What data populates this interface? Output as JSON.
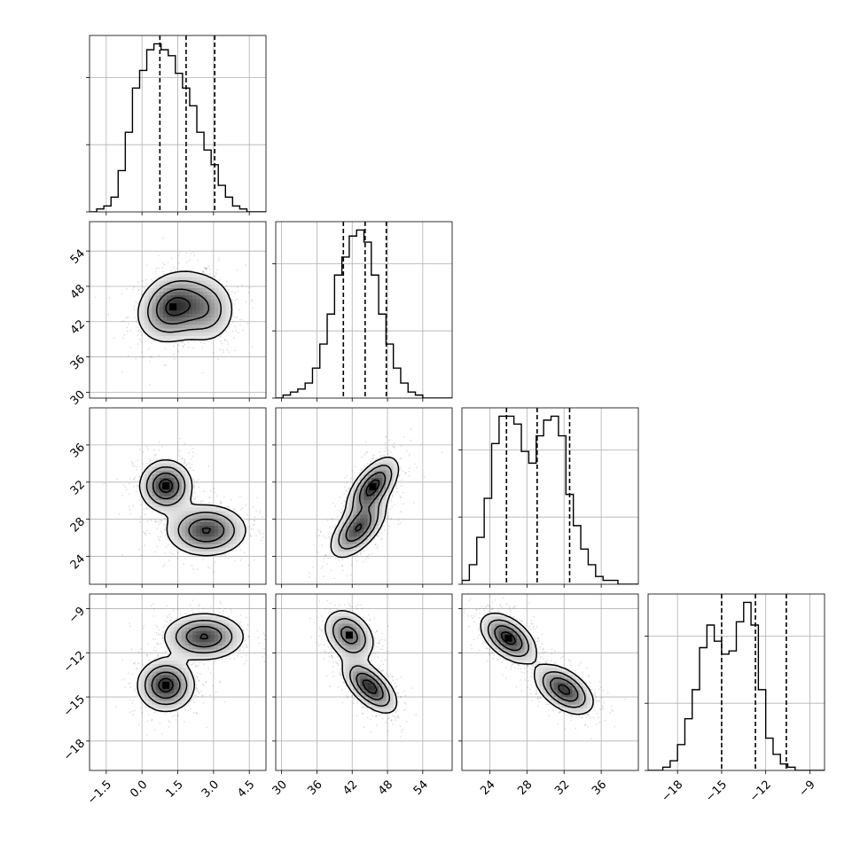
{
  "chart_data": {
    "type": "corner",
    "grid": true,
    "parameters": [
      {
        "index": 0,
        "axis_ticks": [
          "−1.5",
          "0.0",
          "1.5",
          "3.0",
          "4.5"
        ],
        "tick_values": [
          -1.5,
          0.0,
          1.5,
          3.0,
          4.5
        ],
        "range": [
          -2.2,
          5.2
        ],
        "quantiles": [
          0.75,
          1.85,
          3.05
        ]
      },
      {
        "index": 1,
        "axis_ticks": [
          "30",
          "36",
          "42",
          "48",
          "54"
        ],
        "tick_values": [
          30,
          36,
          42,
          48,
          54
        ],
        "range": [
          29,
          59
        ],
        "quantiles": [
          40.5,
          44.2,
          47.8
        ]
      },
      {
        "index": 2,
        "axis_ticks": [
          "24",
          "28",
          "32",
          "36"
        ],
        "tick_values": [
          24,
          28,
          32,
          36
        ],
        "range": [
          21,
          40
        ],
        "quantiles": [
          25.8,
          29.1,
          32.6
        ]
      },
      {
        "index": 3,
        "axis_ticks": [
          "−18",
          "−15",
          "−12",
          "−9"
        ],
        "tick_values": [
          -18,
          -15,
          -12,
          -9
        ],
        "range": [
          -20,
          -8
        ],
        "quantiles": [
          -15.0,
          -12.7,
          -10.6
        ]
      }
    ],
    "histograms": [
      {
        "param": 0,
        "bin_start": -2.2,
        "bin_width": 0.3,
        "counts": [
          0,
          1,
          2,
          5,
          14,
          27,
          42,
          48,
          55,
          57,
          55,
          53,
          47,
          42,
          36,
          27,
          21,
          16,
          9,
          5,
          2,
          1,
          0,
          0,
          0
        ]
      },
      {
        "param": 1,
        "bin_start": 29,
        "bin_width": 1.25,
        "counts": [
          0,
          1,
          2,
          3,
          5,
          10,
          18,
          28,
          41,
          47,
          54,
          56,
          52,
          41,
          28,
          18,
          10,
          5,
          2,
          1,
          0,
          0,
          0,
          0
        ]
      },
      {
        "param": 2,
        "bin_start": 21,
        "bin_width": 0.8,
        "counts": [
          1,
          5,
          12,
          22,
          36,
          43,
          43,
          41,
          34,
          31,
          38,
          42,
          43,
          38,
          23,
          15,
          9,
          5,
          2,
          1,
          1,
          0,
          0,
          0
        ]
      },
      {
        "param": 3,
        "bin_start": -20,
        "bin_width": 0.5,
        "counts": [
          0,
          0,
          1,
          3,
          8,
          16,
          25,
          38,
          45,
          40,
          36,
          37,
          46,
          52,
          45,
          25,
          10,
          5,
          2,
          1,
          0,
          0,
          0,
          0
        ]
      }
    ],
    "panels_2d": [
      {
        "x_param": 0,
        "y_param": 1,
        "modes": [
          [
            1.3,
            44.5,
            0.75,
            3.0,
            0.2,
            1.0
          ],
          [
            2.7,
            44.0,
            0.65,
            3.0,
            0.0,
            0.55
          ]
        ]
      },
      {
        "x_param": 0,
        "y_param": 2,
        "modes": [
          [
            1.0,
            31.6,
            0.55,
            1.4,
            0.0,
            1.0
          ],
          [
            2.7,
            26.8,
            0.85,
            1.4,
            0.0,
            0.9
          ]
        ]
      },
      {
        "x_param": 0,
        "y_param": 3,
        "modes": [
          [
            1.0,
            -14.2,
            0.6,
            0.9,
            0.0,
            1.0
          ],
          [
            2.6,
            -10.9,
            0.85,
            0.8,
            0.0,
            0.9
          ]
        ]
      },
      {
        "x_param": 1,
        "y_param": 2,
        "modes": [
          [
            45.5,
            31.5,
            2.2,
            1.6,
            0.6,
            1.0
          ],
          [
            43.0,
            27.0,
            2.4,
            1.6,
            0.6,
            0.9
          ]
        ]
      },
      {
        "x_param": 1,
        "y_param": 3,
        "modes": [
          [
            41.5,
            -10.8,
            2.2,
            0.9,
            -0.3,
            0.75
          ],
          [
            45.0,
            -14.3,
            2.3,
            0.9,
            -0.6,
            1.0
          ]
        ]
      },
      {
        "x_param": 2,
        "y_param": 3,
        "modes": [
          [
            26.0,
            -11.0,
            1.5,
            0.85,
            -0.5,
            1.0
          ],
          [
            32.0,
            -14.5,
            1.6,
            0.85,
            -0.5,
            0.95
          ]
        ]
      }
    ]
  }
}
